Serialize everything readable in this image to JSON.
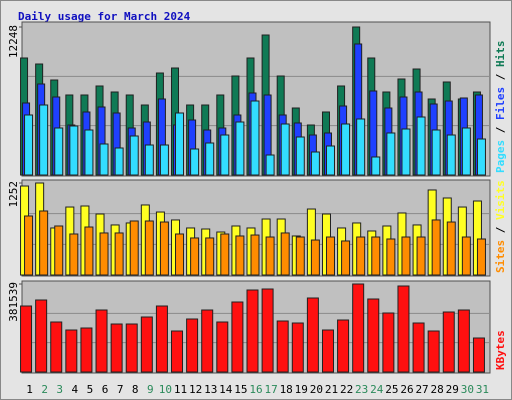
{
  "title": "Daily usage for March 2024",
  "legend_separator": " / ",
  "chart_data": [
    {
      "type": "bar",
      "ylim": [
        0,
        12248
      ],
      "yticks": [
        12248
      ],
      "series": [
        {
          "name": "Hits",
          "color": "#0f7a55",
          "values": [
            9683,
            9186,
            7862,
            6621,
            6621,
            7366,
            6869,
            6621,
            5793,
            8441,
            8855,
            5793,
            5793,
            6621,
            8193,
            9683,
            11586,
            8193,
            5545,
            4138,
            5214,
            7366,
            12248,
            9683,
            6869,
            7945,
            8772,
            6290,
            7697,
            6290,
            6869
          ]
        },
        {
          "name": "Files",
          "color": "#1f40ff",
          "values": [
            5959,
            7531,
            6455,
            4138,
            5214,
            5628,
            5131,
            3890,
            4386,
            6290,
            4138,
            4552,
            3724,
            3890,
            4966,
            6786,
            6621,
            4966,
            4304,
            3310,
            3476,
            5710,
            10842,
            6952,
            5545,
            6455,
            6869,
            5876,
            6124,
            6373,
            6621
          ]
        },
        {
          "name": "Pages",
          "color": "#33ddff",
          "values": [
            4966,
            5793,
            3890,
            4055,
            3724,
            2566,
            2235,
            3228,
            2483,
            2483,
            5131,
            2152,
            2648,
            3310,
            4386,
            6124,
            1655,
            4221,
            3145,
            1903,
            2400,
            4221,
            4635,
            1490,
            3476,
            3807,
            4800,
            3724,
            3310,
            3890,
            2979
          ]
        }
      ]
    },
    {
      "type": "bar",
      "ylim": [
        0,
        1252
      ],
      "yticks": [
        1252
      ],
      "series": [
        {
          "name": "Visits",
          "color": "#ffff22",
          "values": [
            1211,
            1252,
            640,
            925,
            939,
            830,
            681,
            708,
            953,
            857,
            749,
            640,
            626,
            585,
            667,
            640,
            762,
            762,
            531,
            898,
            830,
            640,
            708,
            599,
            667,
            844,
            681,
            1157,
            1048,
            925,
            1007
          ]
        },
        {
          "name": "Sites",
          "color": "#ff8c00",
          "values": [
            803,
            871,
            667,
            558,
            653,
            572,
            572,
            735,
            735,
            721,
            558,
            504,
            504,
            558,
            531,
            544,
            517,
            572,
            517,
            476,
            517,
            463,
            517,
            517,
            490,
            517,
            517,
            749,
            721,
            517,
            490
          ]
        }
      ]
    },
    {
      "type": "bar",
      "ylim": [
        0,
        381539
      ],
      "yticks": [
        381539
      ],
      "categories": [
        "1",
        "2",
        "3",
        "4",
        "5",
        "6",
        "7",
        "8",
        "9",
        "10",
        "11",
        "12",
        "13",
        "14",
        "15",
        "16",
        "17",
        "18",
        "19",
        "20",
        "21",
        "22",
        "23",
        "24",
        "25",
        "26",
        "27",
        "28",
        "29",
        "30",
        "31"
      ],
      "category_colors": [
        "#000",
        "#2a8a5a",
        "#2a8a5a",
        "#000",
        "#000",
        "#000",
        "#000",
        "#000",
        "#2a8a5a",
        "#2a8a5a",
        "#000",
        "#000",
        "#000",
        "#000",
        "#000",
        "#2a8a5a",
        "#2a8a5a",
        "#000",
        "#000",
        "#000",
        "#000",
        "#000",
        "#2a8a5a",
        "#2a8a5a",
        "#000",
        "#000",
        "#000",
        "#000",
        "#000",
        "#2a8a5a",
        "#2a8a5a"
      ],
      "series": [
        {
          "name": "KBytes",
          "color": "#ff1010",
          "values": [
            286156,
            312170,
            216785,
            182099,
            190771,
            268813,
            208114,
            208114,
            238464,
            286156,
            177764,
            229792,
            268813,
            216785,
            303499,
            355527,
            359863,
            221121,
            212449,
            320842,
            182099,
            225456,
            381539,
            316506,
            255806,
            372870,
            212449,
            177764,
            260142,
            268813,
            147414
          ]
        }
      ]
    }
  ]
}
